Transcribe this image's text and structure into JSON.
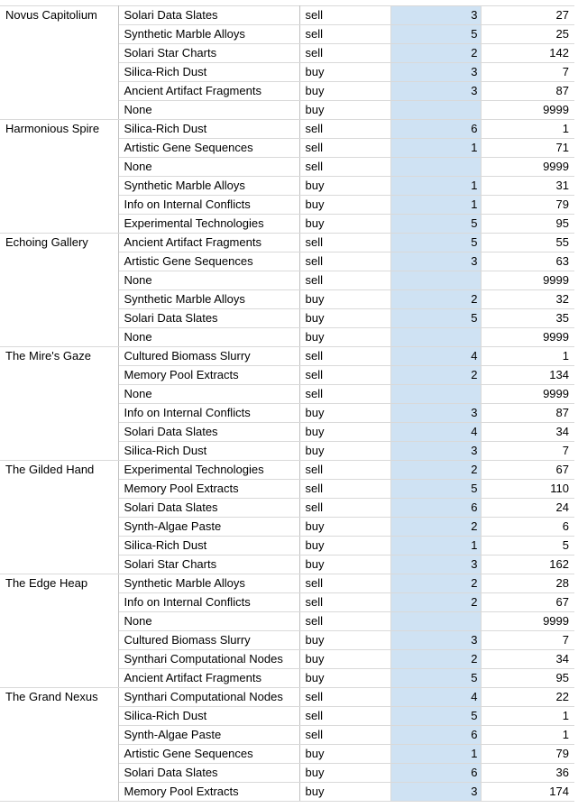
{
  "rows": [
    {
      "location": "Novus Capitolium",
      "item": "Solari Data Slates",
      "action": "sell",
      "qty": "3",
      "price": "27"
    },
    {
      "location": "",
      "item": "Synthetic Marble Alloys",
      "action": "sell",
      "qty": "5",
      "price": "25"
    },
    {
      "location": "",
      "item": "Solari Star Charts",
      "action": "sell",
      "qty": "2",
      "price": "142"
    },
    {
      "location": "",
      "item": "Silica-Rich Dust",
      "action": "buy",
      "qty": "3",
      "price": "7"
    },
    {
      "location": "",
      "item": "Ancient Artifact Fragments",
      "action": "buy",
      "qty": "3",
      "price": "87"
    },
    {
      "location": "",
      "item": "None",
      "action": "buy",
      "qty": "",
      "price": "9999"
    },
    {
      "location": "Harmonious Spire",
      "item": "Silica-Rich Dust",
      "action": "sell",
      "qty": "6",
      "price": "1"
    },
    {
      "location": "",
      "item": "Artistic Gene Sequences",
      "action": "sell",
      "qty": "1",
      "price": "71"
    },
    {
      "location": "",
      "item": "None",
      "action": "sell",
      "qty": "",
      "price": "9999"
    },
    {
      "location": "",
      "item": "Synthetic Marble Alloys",
      "action": "buy",
      "qty": "1",
      "price": "31"
    },
    {
      "location": "",
      "item": "Info on Internal Conflicts",
      "action": "buy",
      "qty": "1",
      "price": "79"
    },
    {
      "location": "",
      "item": "Experimental Technologies",
      "action": "buy",
      "qty": "5",
      "price": "95"
    },
    {
      "location": "Echoing Gallery",
      "item": "Ancient Artifact Fragments",
      "action": "sell",
      "qty": "5",
      "price": "55"
    },
    {
      "location": "",
      "item": "Artistic Gene Sequences",
      "action": "sell",
      "qty": "3",
      "price": "63"
    },
    {
      "location": "",
      "item": "None",
      "action": "sell",
      "qty": "",
      "price": "9999"
    },
    {
      "location": "",
      "item": "Synthetic Marble Alloys",
      "action": "buy",
      "qty": "2",
      "price": "32"
    },
    {
      "location": "",
      "item": "Solari Data Slates",
      "action": "buy",
      "qty": "5",
      "price": "35"
    },
    {
      "location": "",
      "item": "None",
      "action": "buy",
      "qty": "",
      "price": "9999"
    },
    {
      "location": "The Mire's Gaze",
      "item": "Cultured Biomass Slurry",
      "action": "sell",
      "qty": "4",
      "price": "1"
    },
    {
      "location": "",
      "item": "Memory Pool Extracts",
      "action": "sell",
      "qty": "2",
      "price": "134"
    },
    {
      "location": "",
      "item": "None",
      "action": "sell",
      "qty": "",
      "price": "9999"
    },
    {
      "location": "",
      "item": "Info on Internal Conflicts",
      "action": "buy",
      "qty": "3",
      "price": "87"
    },
    {
      "location": "",
      "item": "Solari Data Slates",
      "action": "buy",
      "qty": "4",
      "price": "34"
    },
    {
      "location": "",
      "item": "Silica-Rich Dust",
      "action": "buy",
      "qty": "3",
      "price": "7"
    },
    {
      "location": "The Gilded Hand",
      "item": "Experimental Technologies",
      "action": "sell",
      "qty": "2",
      "price": "67"
    },
    {
      "location": "",
      "item": "Memory Pool Extracts",
      "action": "sell",
      "qty": "5",
      "price": "110"
    },
    {
      "location": "",
      "item": "Solari Data Slates",
      "action": "sell",
      "qty": "6",
      "price": "24"
    },
    {
      "location": "",
      "item": "Synth-Algae Paste",
      "action": "buy",
      "qty": "2",
      "price": "6"
    },
    {
      "location": "",
      "item": "Silica-Rich Dust",
      "action": "buy",
      "qty": "1",
      "price": "5"
    },
    {
      "location": "",
      "item": "Solari Star Charts",
      "action": "buy",
      "qty": "3",
      "price": "162"
    },
    {
      "location": "The Edge Heap",
      "item": "Synthetic Marble Alloys",
      "action": "sell",
      "qty": "2",
      "price": "28"
    },
    {
      "location": "",
      "item": "Info on Internal Conflicts",
      "action": "sell",
      "qty": "2",
      "price": "67"
    },
    {
      "location": "",
      "item": "None",
      "action": "sell",
      "qty": "",
      "price": "9999"
    },
    {
      "location": "",
      "item": "Cultured Biomass Slurry",
      "action": "buy",
      "qty": "3",
      "price": "7"
    },
    {
      "location": "",
      "item": "Synthari Computational Nodes",
      "action": "buy",
      "qty": "2",
      "price": "34"
    },
    {
      "location": "",
      "item": "Ancient Artifact Fragments",
      "action": "buy",
      "qty": "5",
      "price": "95"
    },
    {
      "location": "The Grand Nexus",
      "item": "Synthari Computational Nodes",
      "action": "sell",
      "qty": "4",
      "price": "22"
    },
    {
      "location": "",
      "item": "Silica-Rich Dust",
      "action": "sell",
      "qty": "5",
      "price": "1"
    },
    {
      "location": "",
      "item": "Synth-Algae Paste",
      "action": "sell",
      "qty": "6",
      "price": "1"
    },
    {
      "location": "",
      "item": "Artistic Gene Sequences",
      "action": "buy",
      "qty": "1",
      "price": "79"
    },
    {
      "location": "",
      "item": "Solari Data Slates",
      "action": "buy",
      "qty": "6",
      "price": "36"
    },
    {
      "location": "",
      "item": "Memory Pool Extracts",
      "action": "buy",
      "qty": "3",
      "price": "174"
    }
  ]
}
